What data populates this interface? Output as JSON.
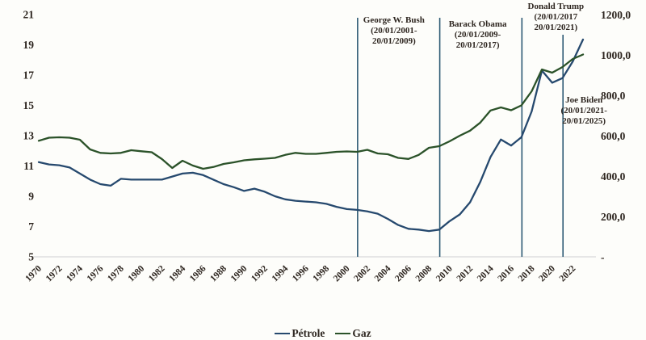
{
  "chart_data": {
    "type": "line",
    "title": "",
    "x_years": [
      1970,
      1971,
      1972,
      1973,
      1974,
      1975,
      1976,
      1977,
      1978,
      1979,
      1980,
      1981,
      1982,
      1983,
      1984,
      1985,
      1986,
      1987,
      1988,
      1989,
      1990,
      1991,
      1992,
      1993,
      1994,
      1995,
      1996,
      1997,
      1998,
      1999,
      2000,
      2001,
      2002,
      2003,
      2004,
      2005,
      2006,
      2007,
      2008,
      2009,
      2010,
      2011,
      2012,
      2013,
      2014,
      2015,
      2016,
      2017,
      2018,
      2019,
      2020,
      2021,
      2022,
      2023
    ],
    "x_tick_labels": [
      "1970",
      "1972",
      "1974",
      "1976",
      "1978",
      "1980",
      "1982",
      "1984",
      "1986",
      "1988",
      "1990",
      "1992",
      "1994",
      "1996",
      "1998",
      "2000",
      "2002",
      "2004",
      "2006",
      "2008",
      "2010",
      "2012",
      "2014",
      "2016",
      "2018",
      "2020",
      "2022"
    ],
    "left_axis": {
      "min": 5,
      "max": 21,
      "step": 2,
      "labels": [
        "21",
        "19",
        "17",
        "15",
        "13",
        "11",
        "9",
        "7",
        "5"
      ]
    },
    "right_axis": {
      "min": 0,
      "max": 1200,
      "step": 200,
      "labels": [
        "1200,0",
        "1000,0",
        "800,0",
        "600,0",
        "400,0",
        "200,0",
        "-"
      ]
    },
    "series": [
      {
        "name": "Pétrole",
        "axis": "left",
        "color": "#26496e",
        "values": [
          11.25,
          11.1,
          11.05,
          10.9,
          10.5,
          10.1,
          9.8,
          9.7,
          10.15,
          10.1,
          10.1,
          10.1,
          10.1,
          10.3,
          10.5,
          10.55,
          10.4,
          10.1,
          9.8,
          9.6,
          9.35,
          9.5,
          9.3,
          9.0,
          8.8,
          8.7,
          8.65,
          8.6,
          8.5,
          8.3,
          8.15,
          8.1,
          8.0,
          7.85,
          7.5,
          7.1,
          6.85,
          6.8,
          6.7,
          6.8,
          7.35,
          7.8,
          8.6,
          9.95,
          11.6,
          12.75,
          12.35,
          12.9,
          14.6,
          17.3,
          16.5,
          16.8,
          17.9,
          19.35
        ]
      },
      {
        "name": "Gaz",
        "axis": "right",
        "color": "#2b5229",
        "values": [
          575,
          590,
          592,
          590,
          580,
          532,
          515,
          512,
          515,
          528,
          523,
          518,
          484,
          440,
          476,
          452,
          436,
          445,
          460,
          468,
          478,
          483,
          486,
          490,
          505,
          515,
          510,
          510,
          515,
          520,
          522,
          520,
          530,
          512,
          508,
          490,
          485,
          505,
          540,
          548,
          572,
          600,
          625,
          665,
          725,
          740,
          726,
          750,
          820,
          928,
          912,
          940,
          980,
          1002
        ]
      }
    ],
    "annotations": [
      {
        "id": "bush",
        "line_year": 2001,
        "lines": [
          "George W. Bush",
          "(20/01/2001-",
          "20/01/2009)"
        ]
      },
      {
        "id": "obama",
        "line_year": 2009,
        "lines": [
          "Barack Obama",
          "(20/01/2009-",
          "20/01/2017)"
        ]
      },
      {
        "id": "trump",
        "line_year": 2017,
        "lines": [
          "Donald Trump",
          "(20/01/2017",
          "20/01/2021)"
        ]
      },
      {
        "id": "biden",
        "line_year": 2021,
        "lines": [
          "Joe Biden",
          "(20/01/2021-",
          "20/01/2025)"
        ]
      }
    ],
    "legend": {
      "items": [
        "Pétrole",
        "Gaz"
      ]
    },
    "colors": {
      "president_line": "#2e5a74",
      "baseline": "#d9d9d9",
      "text": "#2e2620"
    },
    "grid": "off",
    "legend_position": "bottom-center"
  }
}
